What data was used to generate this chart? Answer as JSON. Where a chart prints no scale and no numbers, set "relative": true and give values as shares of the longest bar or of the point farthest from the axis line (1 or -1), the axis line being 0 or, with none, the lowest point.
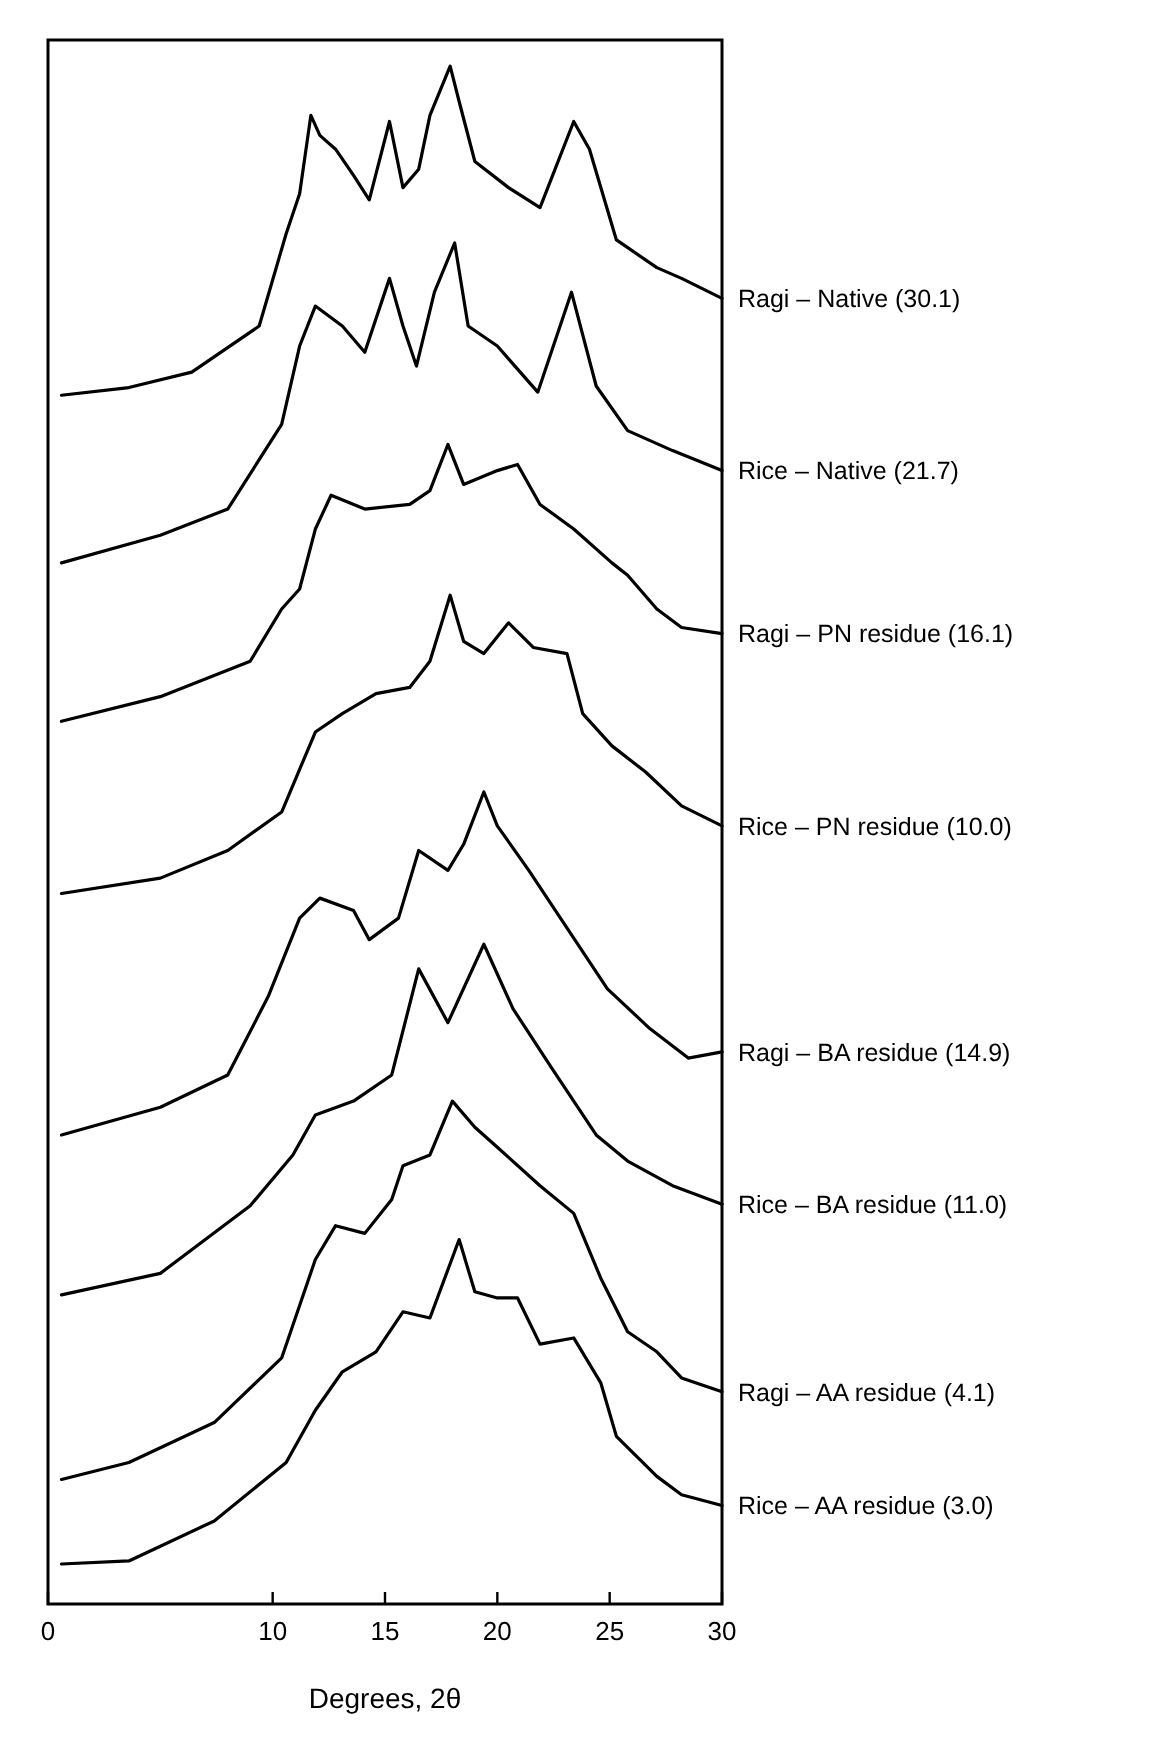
{
  "chart_data": {
    "type": "line",
    "relative": true,
    "xlabel": "Degrees, 2θ",
    "xlim": [
      0,
      30
    ],
    "xticks": [
      0,
      10,
      15,
      20,
      25,
      30
    ],
    "grid": false,
    "legend": false,
    "marker": "none",
    "line_style": "solid",
    "series": [
      {
        "name": "Ragi – Native (30.1)",
        "color": "#000000",
        "x": [
          0.6,
          3.6,
          6.4,
          9.4,
          10.6,
          11.2,
          11.7,
          12.1,
          12.8,
          13.6,
          14.3,
          15.2,
          15.8,
          16.5,
          17.0,
          17.9,
          18.3,
          19.0,
          20.5,
          21.9,
          23.4,
          24.1,
          25.3,
          27.1,
          28.2,
          30
        ],
        "values": [
          0.786,
          0.791,
          0.801,
          0.831,
          0.891,
          0.917,
          0.968,
          0.955,
          0.946,
          0.929,
          0.913,
          0.964,
          0.921,
          0.933,
          0.968,
          1.0,
          0.977,
          0.938,
          0.921,
          0.908,
          0.964,
          0.946,
          0.887,
          0.869,
          0.862,
          0.849
        ]
      },
      {
        "name": "Rice – Native (21.7)",
        "color": "#000000",
        "x": [
          0.6,
          5,
          8,
          10.4,
          11.2,
          11.9,
          13.1,
          14.1,
          15.2,
          15.8,
          16.4,
          17.2,
          18.1,
          18.7,
          20.0,
          21.8,
          23.3,
          24.4,
          25.8,
          27.8,
          30
        ],
        "values": [
          0.677,
          0.695,
          0.712,
          0.767,
          0.818,
          0.844,
          0.831,
          0.814,
          0.862,
          0.831,
          0.805,
          0.853,
          0.885,
          0.831,
          0.818,
          0.788,
          0.853,
          0.792,
          0.763,
          0.75,
          0.737
        ]
      },
      {
        "name": "Ragi – PN residue (16.1)",
        "color": "#000000",
        "x": [
          0.6,
          5,
          9,
          10.4,
          11.2,
          11.9,
          12.6,
          14.1,
          16.1,
          17.0,
          17.8,
          18.5,
          20.0,
          20.9,
          21.9,
          23.4,
          25.1,
          25.8,
          27.1,
          28.2,
          30
        ],
        "values": [
          0.574,
          0.59,
          0.613,
          0.647,
          0.66,
          0.699,
          0.721,
          0.712,
          0.715,
          0.724,
          0.754,
          0.728,
          0.737,
          0.741,
          0.715,
          0.699,
          0.677,
          0.669,
          0.647,
          0.635,
          0.631
        ]
      },
      {
        "name": "Rice – PN residue (10.0)",
        "color": "#000000",
        "x": [
          0.6,
          5,
          8,
          10.4,
          11.9,
          13.1,
          14.6,
          16.1,
          17.0,
          17.9,
          18.5,
          19.4,
          20.5,
          21.6,
          23.1,
          23.8,
          25.1,
          26.6,
          28.2,
          30
        ],
        "values": [
          0.462,
          0.472,
          0.49,
          0.515,
          0.567,
          0.579,
          0.592,
          0.596,
          0.613,
          0.656,
          0.626,
          0.618,
          0.638,
          0.622,
          0.618,
          0.579,
          0.558,
          0.541,
          0.519,
          0.506
        ]
      },
      {
        "name": "Ragi – BA residue (14.9)",
        "color": "#000000",
        "x": [
          0.6,
          5,
          8,
          9.8,
          11.2,
          12.1,
          13.6,
          14.3,
          15.6,
          16.5,
          17.8,
          18.5,
          19.4,
          20.0,
          21.4,
          23.4,
          24.9,
          26.8,
          28.5,
          30
        ],
        "values": [
          0.305,
          0.323,
          0.344,
          0.395,
          0.446,
          0.459,
          0.451,
          0.432,
          0.446,
          0.49,
          0.477,
          0.494,
          0.528,
          0.506,
          0.477,
          0.433,
          0.4,
          0.374,
          0.355,
          0.359
        ]
      },
      {
        "name": "Rice – BA residue (11.0)",
        "color": "#000000",
        "x": [
          0.6,
          5,
          9,
          10.9,
          11.9,
          13.6,
          15.3,
          16.5,
          17.8,
          19.4,
          20.7,
          22.4,
          24.4,
          25.8,
          27.8,
          30
        ],
        "values": [
          0.201,
          0.215,
          0.259,
          0.292,
          0.318,
          0.327,
          0.344,
          0.413,
          0.378,
          0.429,
          0.387,
          0.349,
          0.305,
          0.288,
          0.272,
          0.26
        ]
      },
      {
        "name": "Ragi – AA residue (4.1)",
        "color": "#000000",
        "x": [
          0.6,
          3.6,
          7.4,
          10.4,
          11.9,
          12.8,
          14.1,
          15.3,
          15.8,
          17.0,
          18.0,
          19.0,
          20.0,
          21.9,
          23.4,
          24.6,
          25.8,
          27.1,
          28.2,
          30
        ],
        "values": [
          0.081,
          0.092,
          0.118,
          0.16,
          0.224,
          0.246,
          0.241,
          0.263,
          0.285,
          0.292,
          0.327,
          0.31,
          0.297,
          0.272,
          0.254,
          0.212,
          0.177,
          0.164,
          0.147,
          0.138
        ]
      },
      {
        "name": "Rice – AA residue (3.0)",
        "color": "#000000",
        "x": [
          0.6,
          3.6,
          7.4,
          10.6,
          11.9,
          13.1,
          14.6,
          15.8,
          17.0,
          18.3,
          19.0,
          20.0,
          20.9,
          21.9,
          23.4,
          24.6,
          25.3,
          27.1,
          28.2,
          30
        ],
        "values": [
          0.026,
          0.028,
          0.054,
          0.092,
          0.126,
          0.151,
          0.164,
          0.19,
          0.186,
          0.237,
          0.203,
          0.199,
          0.199,
          0.169,
          0.173,
          0.144,
          0.109,
          0.083,
          0.071,
          0.064
        ]
      }
    ]
  }
}
